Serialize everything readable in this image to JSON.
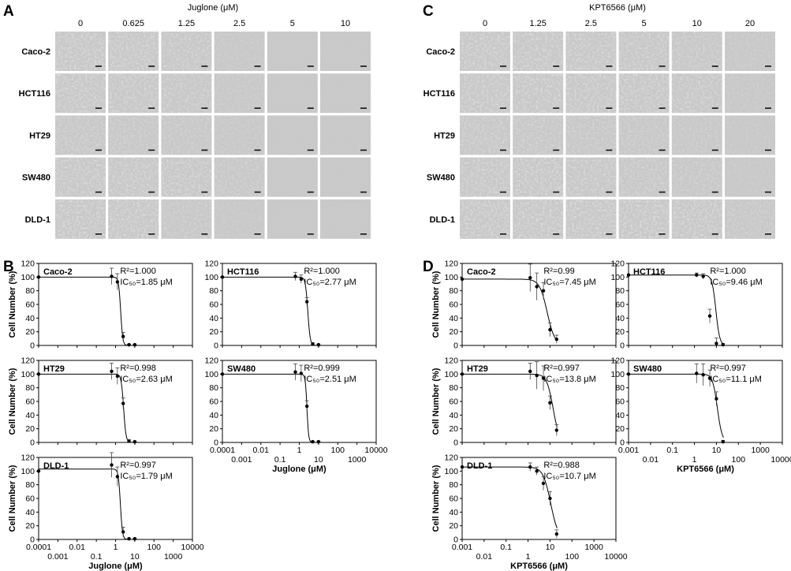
{
  "panels": {
    "A": {
      "label": "A",
      "title": "Juglone (μM)",
      "concentrations": [
        "0",
        "0.625",
        "1.25",
        "2.5",
        "5",
        "10"
      ],
      "cell_lines": [
        "Caco-2",
        "HCT116",
        "HT29",
        "SW480",
        "DLD-1"
      ],
      "density": [
        [
          0.9,
          0.85,
          0.75,
          0.35,
          0.05,
          0.05
        ],
        [
          0.9,
          0.8,
          0.7,
          0.4,
          0.05,
          0.05
        ],
        [
          0.7,
          0.6,
          0.55,
          0.4,
          0.05,
          0.05
        ],
        [
          0.85,
          0.85,
          0.85,
          0.6,
          0.08,
          0.05
        ],
        [
          0.95,
          0.9,
          0.6,
          0.3,
          0.05,
          0.05
        ]
      ]
    },
    "C": {
      "label": "C",
      "title": "KPT6566 (μM)",
      "concentrations": [
        "0",
        "1.25",
        "2.5",
        "5",
        "10",
        "20"
      ],
      "cell_lines": [
        "Caco-2",
        "HCT116",
        "HT29",
        "SW480",
        "DLD-1"
      ],
      "density": [
        [
          0.9,
          0.85,
          0.85,
          0.8,
          0.7,
          0.4
        ],
        [
          0.9,
          0.9,
          0.85,
          0.85,
          0.8,
          0.35
        ],
        [
          0.7,
          0.7,
          0.65,
          0.6,
          0.5,
          0.3
        ],
        [
          0.85,
          0.95,
          0.8,
          0.7,
          0.6,
          0.3
        ],
        [
          0.95,
          0.95,
          0.95,
          0.95,
          0.95,
          0.6
        ]
      ]
    },
    "B": {
      "label": "B",
      "ylabel": "Cell Number (%)",
      "xlabel": "Juglone (μM)",
      "x_ticks": [
        "0.0001",
        "0.001",
        "0.01",
        "0.1",
        "1",
        "10",
        "100",
        "1000",
        "10000"
      ],
      "y_ticks": [
        "0",
        "20",
        "40",
        "60",
        "80",
        "100",
        "120"
      ]
    },
    "D": {
      "label": "D",
      "ylabel": "Cell Number (%)",
      "xlabel": "KPT6566 (μM)",
      "x_ticks": [
        "0.001",
        "0.01",
        "0.1",
        "1",
        "10",
        "100",
        "1000",
        "10000"
      ],
      "y_ticks": [
        "0",
        "20",
        "40",
        "60",
        "80",
        "100",
        "120"
      ]
    }
  },
  "chart_data": [
    {
      "type": "scatter",
      "panel": "B",
      "cell_line": "Caco-2",
      "r2": "R²=1.000",
      "ic50_text": "IC₅₀=1.85 μM",
      "ic50": 1.85,
      "top": 100,
      "hill": 8,
      "x": [
        0.0001,
        0.625,
        1.25,
        2.5,
        5,
        10
      ],
      "y": [
        100,
        101,
        93,
        13,
        1,
        1
      ],
      "err": [
        0,
        12,
        12,
        6,
        1,
        1
      ],
      "xlim": [
        0.0001,
        10000
      ],
      "ylim": [
        0,
        120
      ],
      "log_x": true,
      "grid": false
    },
    {
      "type": "scatter",
      "panel": "B",
      "cell_line": "HCT116",
      "r2": "R²=1.000",
      "ic50_text": "IC₅₀=2.77 μM",
      "ic50": 2.77,
      "top": 100,
      "hill": 7,
      "x": [
        0.0001,
        0.625,
        1.25,
        2.5,
        5,
        10
      ],
      "y": [
        100,
        101,
        97,
        64,
        2,
        1
      ],
      "err": [
        0,
        6,
        6,
        6,
        2,
        1
      ],
      "xlim": [
        0.0001,
        10000
      ],
      "ylim": [
        0,
        120
      ],
      "log_x": true,
      "grid": false
    },
    {
      "type": "scatter",
      "panel": "B",
      "cell_line": "HT29",
      "r2": "R²=0.998",
      "ic50_text": "IC₅₀=2.63 μM",
      "ic50": 2.63,
      "top": 100,
      "hill": 7,
      "x": [
        0.0001,
        0.625,
        1.25,
        2.5,
        5,
        10
      ],
      "y": [
        100,
        104,
        97,
        57,
        2,
        1
      ],
      "err": [
        0,
        12,
        12,
        8,
        2,
        1
      ],
      "xlim": [
        0.0001,
        10000
      ],
      "ylim": [
        0,
        120
      ],
      "log_x": true,
      "grid": false
    },
    {
      "type": "scatter",
      "panel": "B",
      "cell_line": "SW480",
      "r2": "R²=0.999",
      "ic50_text": "IC₅₀=2.51 μM",
      "ic50": 2.51,
      "top": 100,
      "hill": 10,
      "x": [
        0.0001,
        0.625,
        1.25,
        2.5,
        5,
        10
      ],
      "y": [
        100,
        103,
        101,
        53,
        1,
        1
      ],
      "err": [
        0,
        12,
        12,
        8,
        1,
        1
      ],
      "xlim": [
        0.0001,
        10000
      ],
      "ylim": [
        0,
        120
      ],
      "log_x": true,
      "grid": false
    },
    {
      "type": "scatter",
      "panel": "B",
      "cell_line": "DLD-1",
      "r2": "R²=0.997",
      "ic50_text": "IC₅₀=1.79 μM",
      "ic50": 1.79,
      "top": 103,
      "hill": 8,
      "x": [
        0.0001,
        0.625,
        1.25,
        2.5,
        5,
        10
      ],
      "y": [
        100,
        109,
        92,
        11,
        1,
        1
      ],
      "err": [
        0,
        18,
        14,
        7,
        1,
        1
      ],
      "xlim": [
        0.0001,
        10000
      ],
      "ylim": [
        0,
        120
      ],
      "log_x": true,
      "grid": false
    },
    {
      "type": "scatter",
      "panel": "D",
      "cell_line": "Caco-2",
      "r2": "R²=0.99",
      "ic50_text": "IC₅₀=7.45 μM",
      "ic50": 7.45,
      "top": 97,
      "hill": 2.5,
      "x": [
        0.001,
        1.25,
        2.5,
        5,
        10,
        20
      ],
      "y": [
        97,
        99,
        86,
        80,
        23,
        9
      ],
      "err": [
        0,
        20,
        20,
        12,
        10,
        6
      ],
      "xlim": [
        0.001,
        10000
      ],
      "ylim": [
        0,
        120
      ],
      "log_x": true,
      "grid": false
    },
    {
      "type": "scatter",
      "panel": "D",
      "cell_line": "HCT116",
      "r2": "R²=1.000",
      "ic50_text": "IC₅₀=9.46 μM",
      "ic50": 9.46,
      "top": 103,
      "hill": 5,
      "x": [
        0.001,
        1.25,
        2.5,
        5,
        10,
        20
      ],
      "y": [
        103,
        103,
        101,
        43,
        3,
        1
      ],
      "err": [
        0,
        3,
        4,
        10,
        8,
        2
      ],
      "xlim": [
        0.001,
        10000
      ],
      "ylim": [
        0,
        120
      ],
      "log_x": true,
      "grid": false
    },
    {
      "type": "scatter",
      "panel": "D",
      "cell_line": "HT29",
      "r2": "R²=0.997",
      "ic50_text": "IC₅₀=13.8 μM",
      "ic50": 13.8,
      "top": 100,
      "hill": 3,
      "x": [
        0.001,
        1.25,
        2.5,
        5,
        10,
        20
      ],
      "y": [
        100,
        104,
        98,
        94,
        58,
        18
      ],
      "err": [
        0,
        12,
        20,
        18,
        10,
        8
      ],
      "xlim": [
        0.001,
        10000
      ],
      "ylim": [
        0,
        120
      ],
      "log_x": true,
      "grid": false
    },
    {
      "type": "scatter",
      "panel": "D",
      "cell_line": "SW480",
      "r2": "R²=0.997",
      "ic50_text": "IC₅₀=11.1 μM",
      "ic50": 11.1,
      "top": 100,
      "hill": 4,
      "x": [
        0.001,
        1.25,
        2.5,
        5,
        10,
        20
      ],
      "y": [
        100,
        101,
        99,
        94,
        64,
        1
      ],
      "err": [
        0,
        14,
        16,
        12,
        10,
        2
      ],
      "xlim": [
        0.001,
        10000
      ],
      "ylim": [
        0,
        120
      ],
      "log_x": true,
      "grid": false
    },
    {
      "type": "scatter",
      "panel": "D",
      "cell_line": "DLD-1",
      "r2": "R²=0.988",
      "ic50_text": "IC₅₀=10.7 μM",
      "ic50": 10.7,
      "top": 106,
      "hill": 2.5,
      "x": [
        0.001,
        1.25,
        2.5,
        5,
        10,
        20
      ],
      "y": [
        106,
        106,
        100,
        82,
        60,
        8
      ],
      "err": [
        0,
        6,
        6,
        10,
        10,
        6
      ],
      "xlim": [
        0.001,
        10000
      ],
      "ylim": [
        0,
        120
      ],
      "log_x": true,
      "grid": false
    }
  ]
}
